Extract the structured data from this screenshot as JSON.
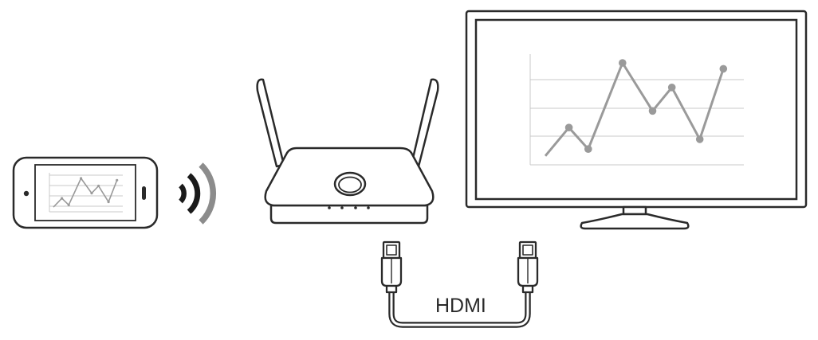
{
  "diagram": {
    "cable_label": "HDMI",
    "colors": {
      "outline": "#2a2a2a",
      "chart_line": "#9a9a9a",
      "gridline": "#c8c8c8",
      "signal_dark": "#1a1a1a",
      "signal_light": "#8c8c8c"
    },
    "chart_points": [
      [
        0.0,
        0.05
      ],
      [
        0.11,
        0.34
      ],
      [
        0.2,
        0.12
      ],
      [
        0.36,
        1.0
      ],
      [
        0.5,
        0.51
      ],
      [
        0.59,
        0.75
      ],
      [
        0.72,
        0.22
      ],
      [
        0.83,
        0.94
      ]
    ]
  }
}
